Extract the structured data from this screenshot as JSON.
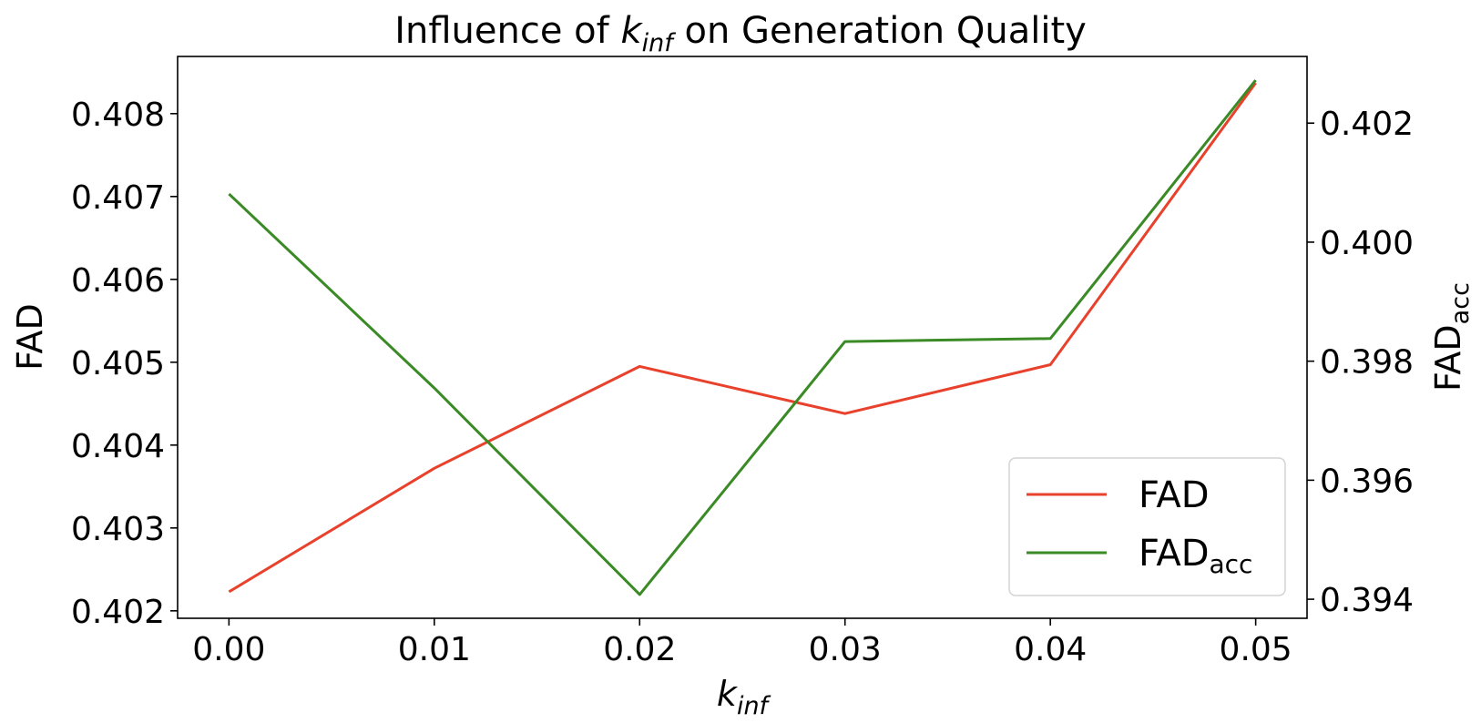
{
  "chart_data": {
    "type": "line",
    "title": {
      "prefix": "Influence of ",
      "var": "k",
      "sub": "inf",
      "suffix": " on Generation Quality"
    },
    "xlabel": {
      "var": "k",
      "sub": "inf"
    },
    "ylabel_left": "FAD",
    "ylabel_right": {
      "base": "FAD",
      "sub": "acc"
    },
    "x": [
      0.0,
      0.01,
      0.02,
      0.03,
      0.04,
      0.05
    ],
    "x_tick_labels": [
      "0.00",
      "0.01",
      "0.02",
      "0.03",
      "0.04",
      "0.05"
    ],
    "xlim": [
      -0.0025,
      0.0525
    ],
    "series": [
      {
        "name": "FAD",
        "legend_sub": "",
        "axis": "left",
        "color": "#e8412c",
        "values": [
          0.40223,
          0.40372,
          0.40495,
          0.40438,
          0.40497,
          0.40837
        ]
      },
      {
        "name": "FAD",
        "legend_sub": "acc",
        "axis": "right",
        "color": "#3a8a26",
        "values": [
          0.40081,
          0.39755,
          0.39408,
          0.39833,
          0.39838,
          0.40272
        ]
      }
    ],
    "y_left": {
      "lim": [
        0.40191,
        0.40869
      ],
      "ticks": [
        0.402,
        0.403,
        0.404,
        0.405,
        0.406,
        0.407,
        0.408
      ],
      "tick_labels": [
        "0.402",
        "0.403",
        "0.404",
        "0.405",
        "0.406",
        "0.407",
        "0.408"
      ]
    },
    "y_right": {
      "lim": [
        0.39368,
        0.40312
      ],
      "ticks": [
        0.394,
        0.396,
        0.398,
        0.4,
        0.402
      ],
      "tick_labels": [
        "0.394",
        "0.396",
        "0.398",
        "0.400",
        "0.402"
      ]
    },
    "legend_position": "lower right",
    "grid": false
  }
}
